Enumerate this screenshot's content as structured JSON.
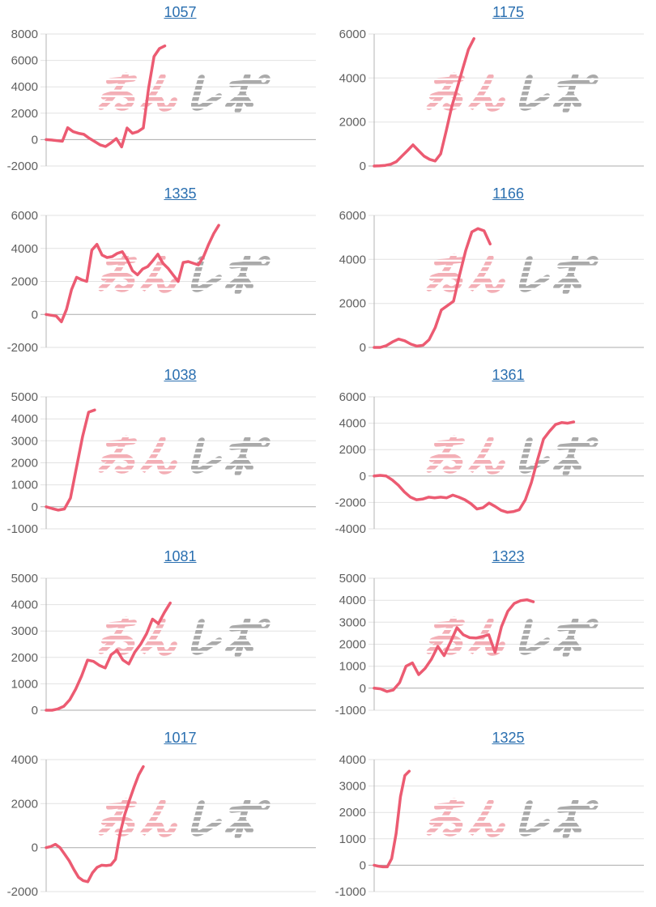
{
  "colors": {
    "line": "#ec5b72",
    "title_link": "#2a6fb0",
    "grid_line": "#e2e2e2",
    "zero_line": "#ababab",
    "axis_line": "#b5b5b5",
    "tick_label": "#5f5f5f",
    "background": "#ffffff"
  },
  "watermark": {
    "text": "みんレポ",
    "part_pink": "みん",
    "part_gray": "レポ",
    "color_pink": "#f2a9b0",
    "color_gray": "#a3a3a3"
  },
  "layout": {
    "columns": 2,
    "rows": 5,
    "gridlines": "horizontal",
    "legend": "none",
    "x_axis_labels": "none"
  },
  "chart_data": [
    {
      "type": "line",
      "title": "1057",
      "ylim": [
        -2000,
        8000
      ],
      "yticks": [
        8000,
        6000,
        4000,
        2000,
        0,
        -2000
      ],
      "span_frac": 0.44,
      "values": [
        0,
        -30,
        -80,
        -120,
        900,
        600,
        480,
        400,
        100,
        -150,
        -400,
        -520,
        -250,
        80,
        -550,
        880,
        480,
        600,
        880,
        3900,
        6300,
        6900,
        7100
      ]
    },
    {
      "type": "line",
      "title": "1175",
      "ylim": [
        0,
        6000
      ],
      "yticks": [
        6000,
        4000,
        2000,
        0
      ],
      "span_frac": 0.37,
      "values": [
        0,
        10,
        30,
        80,
        200,
        450,
        700,
        960,
        700,
        450,
        300,
        230,
        550,
        1600,
        2700,
        3560,
        4440,
        5300,
        5790
      ]
    },
    {
      "type": "line",
      "title": "1335",
      "ylim": [
        -2000,
        6000
      ],
      "yticks": [
        6000,
        4000,
        2000,
        0,
        -2000
      ],
      "span_frac": 0.64,
      "values": [
        0,
        -50,
        -100,
        -450,
        300,
        1500,
        2250,
        2100,
        2000,
        3900,
        4250,
        3600,
        3450,
        3500,
        3700,
        3800,
        3300,
        2650,
        2400,
        2750,
        2900,
        3250,
        3650,
        3100,
        2800,
        2400,
        2000,
        3150,
        3200,
        3100,
        3000,
        3500,
        4250,
        4900,
        5400
      ]
    },
    {
      "type": "line",
      "title": "1166",
      "ylim": [
        0,
        6000
      ],
      "yticks": [
        6000,
        4000,
        2000,
        0
      ],
      "span_frac": 0.43,
      "values": [
        0,
        0,
        80,
        250,
        380,
        300,
        150,
        60,
        100,
        350,
        900,
        1700,
        1900,
        2100,
        3300,
        4400,
        5250,
        5400,
        5300,
        4700
      ]
    },
    {
      "type": "line",
      "title": "1038",
      "ylim": [
        -1000,
        5000
      ],
      "yticks": [
        5000,
        4000,
        3000,
        2000,
        1000,
        0,
        -1000
      ],
      "span_frac": 0.18,
      "values": [
        0,
        -80,
        -150,
        -100,
        400,
        1800,
        3200,
        4300,
        4400
      ]
    },
    {
      "type": "line",
      "title": "1361",
      "ylim": [
        -4000,
        6000
      ],
      "yticks": [
        6000,
        4000,
        2000,
        0,
        -2000,
        -4000
      ],
      "span_frac": 0.74,
      "values": [
        0,
        50,
        0,
        -300,
        -700,
        -1200,
        -1600,
        -1800,
        -1750,
        -1600,
        -1650,
        -1600,
        -1650,
        -1450,
        -1600,
        -1800,
        -2100,
        -2500,
        -2400,
        -2050,
        -2300,
        -2600,
        -2750,
        -2700,
        -2550,
        -1800,
        -500,
        1200,
        2800,
        3400,
        3900,
        4050,
        4000,
        4100
      ]
    },
    {
      "type": "line",
      "title": "1081",
      "ylim": [
        0,
        5000
      ],
      "yticks": [
        5000,
        4000,
        3000,
        2000,
        1000,
        0
      ],
      "span_frac": 0.46,
      "values": [
        0,
        0,
        50,
        150,
        400,
        800,
        1300,
        1900,
        1850,
        1700,
        1600,
        2100,
        2270,
        1900,
        1750,
        2200,
        2500,
        2900,
        3450,
        3280,
        3700,
        4060
      ]
    },
    {
      "type": "line",
      "title": "1323",
      "ylim": [
        -1000,
        5000
      ],
      "yticks": [
        5000,
        4000,
        3000,
        2000,
        1000,
        0,
        -1000
      ],
      "span_frac": 0.59,
      "values": [
        0,
        -30,
        -150,
        -80,
        250,
        1000,
        1150,
        620,
        900,
        1320,
        1900,
        1480,
        2100,
        2750,
        2430,
        2300,
        2280,
        2350,
        2430,
        1630,
        2800,
        3500,
        3850,
        3980,
        4020,
        3930
      ]
    },
    {
      "type": "line",
      "title": "1017",
      "ylim": [
        -2000,
        4000
      ],
      "yticks": [
        4000,
        2000,
        0,
        -2000
      ],
      "span_frac": 0.36,
      "values": [
        0,
        50,
        150,
        0,
        -300,
        -600,
        -1000,
        -1350,
        -1500,
        -1550,
        -1150,
        -900,
        -800,
        -820,
        -790,
        -530,
        650,
        1500,
        2150,
        2750,
        3300,
        3680
      ]
    },
    {
      "type": "line",
      "title": "1325",
      "ylim": [
        -1000,
        4000
      ],
      "yticks": [
        4000,
        3000,
        2000,
        1000,
        0,
        -1000
      ],
      "span_frac": 0.13,
      "values": [
        0,
        -40,
        -60,
        -60,
        250,
        1200,
        2600,
        3400,
        3560
      ]
    }
  ]
}
